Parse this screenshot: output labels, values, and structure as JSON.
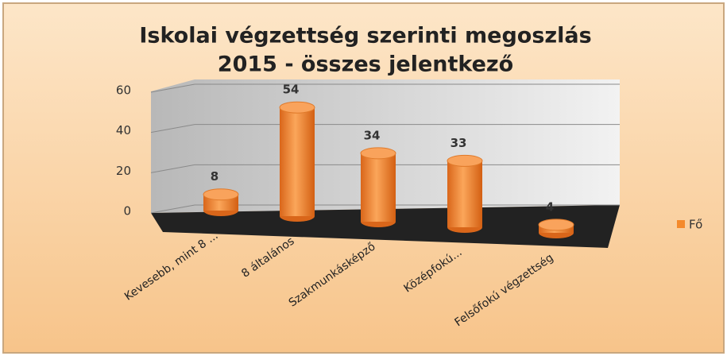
{
  "chart_data": {
    "type": "bar3d",
    "title": [
      "Iskolai végzettség szerinti megoszlás",
      "2015 - összes jelentkező"
    ],
    "categories": [
      "Kevesebb, mint 8 ...",
      "8 általános",
      "Szakmunkásképző",
      "Középfokú...",
      "Felsőfokú végzettség"
    ],
    "series": [
      {
        "name": "Fő",
        "color": "#f48a2c",
        "values": [
          8,
          54,
          34,
          33,
          4
        ]
      }
    ],
    "ylim": [
      0,
      60
    ],
    "yticks": [
      0,
      20,
      40,
      60
    ],
    "grid": true,
    "legend": "right"
  }
}
